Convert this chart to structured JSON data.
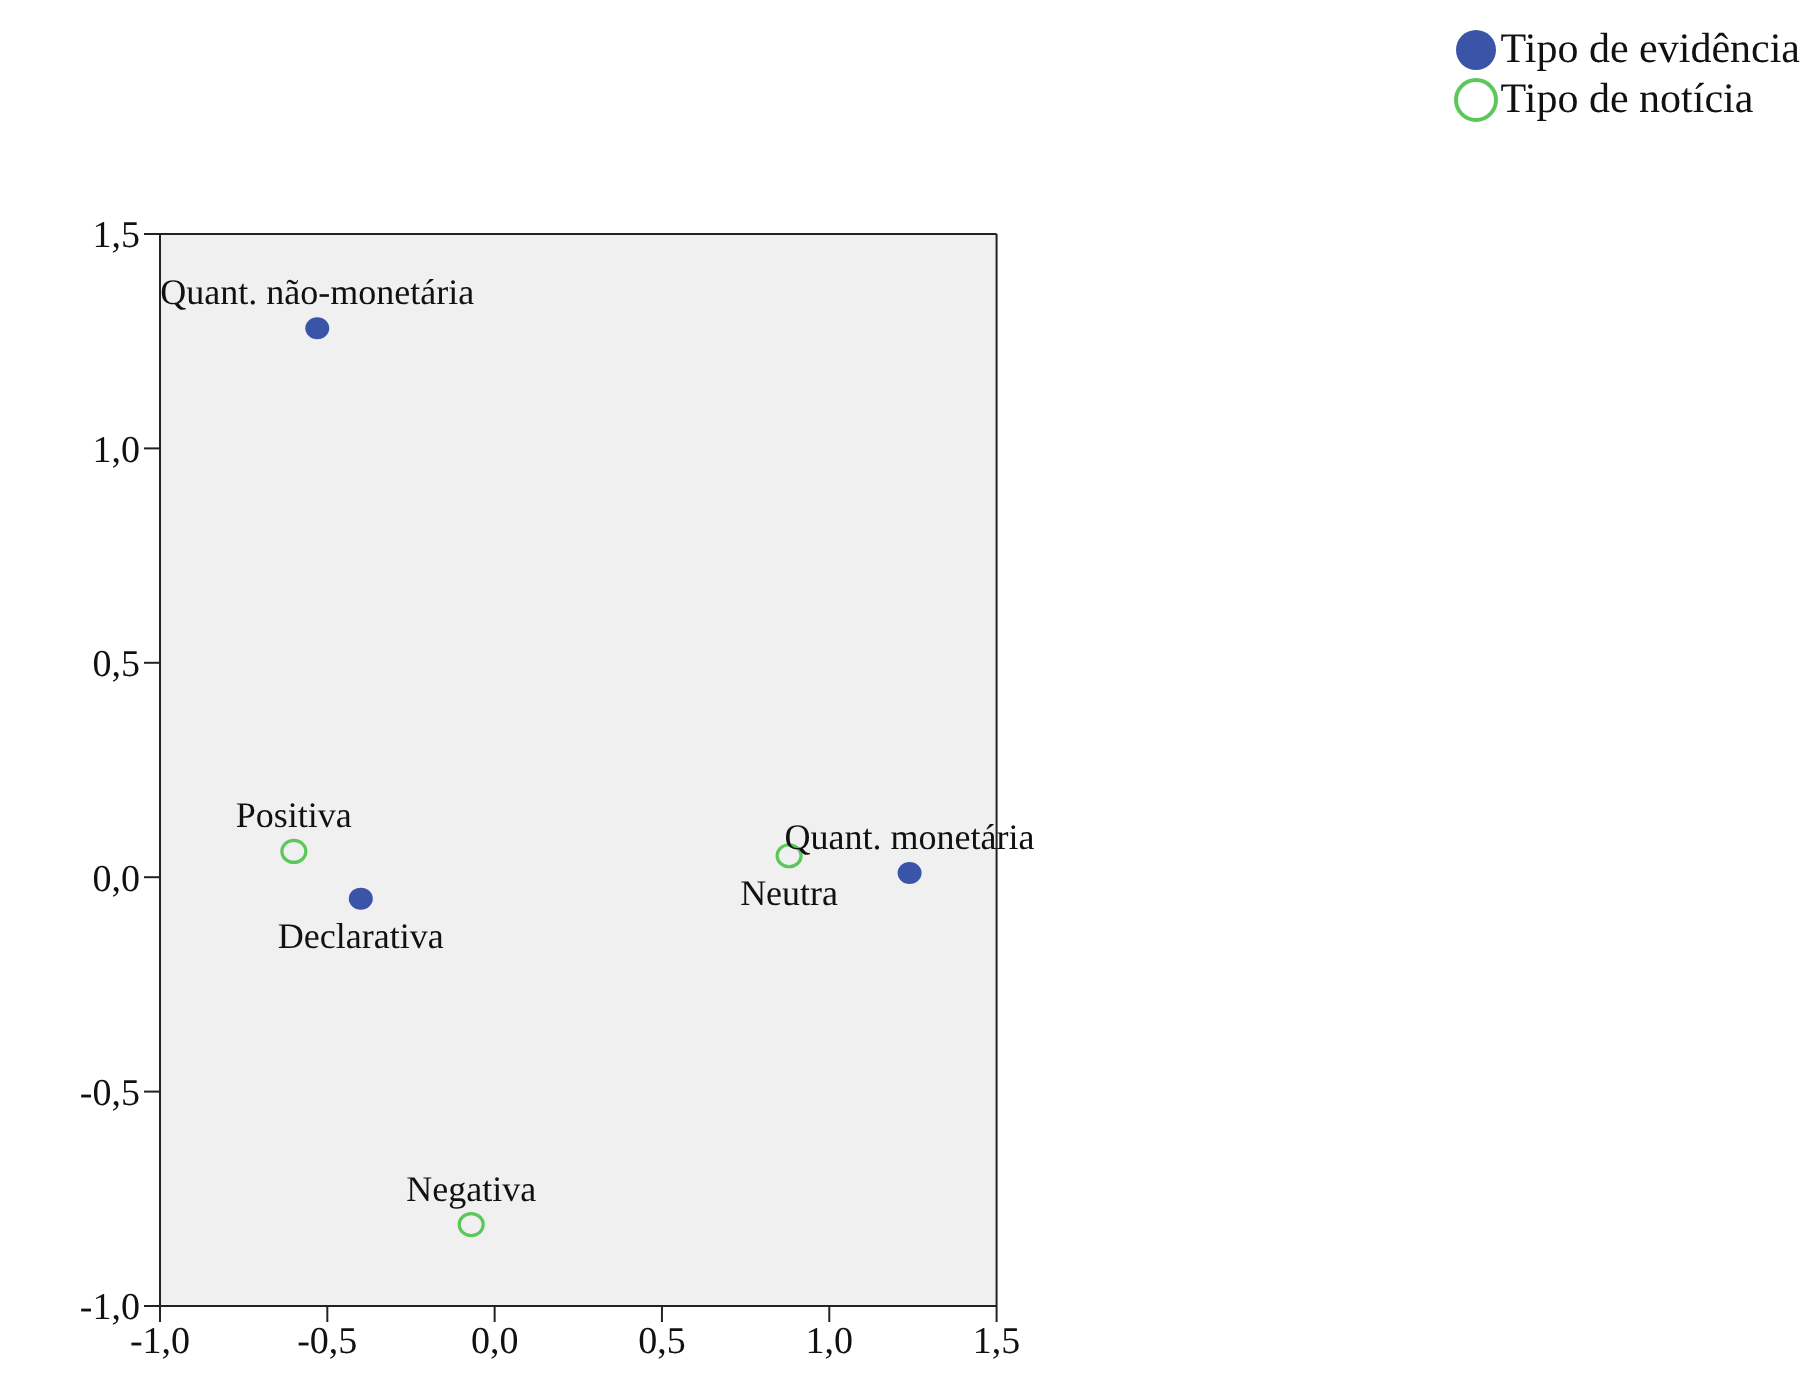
{
  "chart_data": {
    "type": "scatter",
    "legend": "top right",
    "marker": "circle",
    "xlim": [
      -1,
      1.5
    ],
    "ylim": [
      -1,
      1.5
    ],
    "xticks": [
      {
        "value": -1,
        "label": "-1,0"
      },
      {
        "value": -0.5,
        "label": "-0,5"
      },
      {
        "value": 0,
        "label": "0,0"
      },
      {
        "value": 0.5,
        "label": "0,5"
      },
      {
        "value": 1,
        "label": "1,0"
      },
      {
        "value": 1.5,
        "label": "1,5"
      }
    ],
    "yticks": [
      {
        "value": -1,
        "label": "-1,0"
      },
      {
        "value": -0.5,
        "label": "-0,5"
      },
      {
        "value": 0,
        "label": "0,0"
      },
      {
        "value": 0.5,
        "label": "0,5"
      },
      {
        "value": 1,
        "label": "1,0"
      },
      {
        "value": 1.5,
        "label": "1,5"
      }
    ],
    "series": [
      {
        "name": "Tipo de evidência",
        "color": "#3a55a8",
        "x": [
          -0.53,
          -0.4,
          1.24
        ],
        "values": [
          1.28,
          -0.05,
          0.01
        ]
      },
      {
        "name": "Tipo de notícia",
        "color": "#5cc85c",
        "x": [
          -0.6,
          0.88,
          -0.07
        ],
        "values": [
          0.06,
          0.05,
          -0.81
        ]
      }
    ],
    "annotations": [
      {
        "text": "Quant. não-monetária",
        "x": -0.53,
        "y": 1.28
      },
      {
        "text": "Quant. monetária",
        "x": 1.24,
        "y": 0.01
      },
      {
        "text": "Positiva",
        "x": -0.6,
        "y": 0.06
      },
      {
        "text": "Declarativa",
        "x": -0.4,
        "y": -0.05
      },
      {
        "text": "Neutra",
        "x": 0.88,
        "y": 0.05
      },
      {
        "text": "Negativa",
        "x": -0.07,
        "y": -0.81
      }
    ]
  }
}
